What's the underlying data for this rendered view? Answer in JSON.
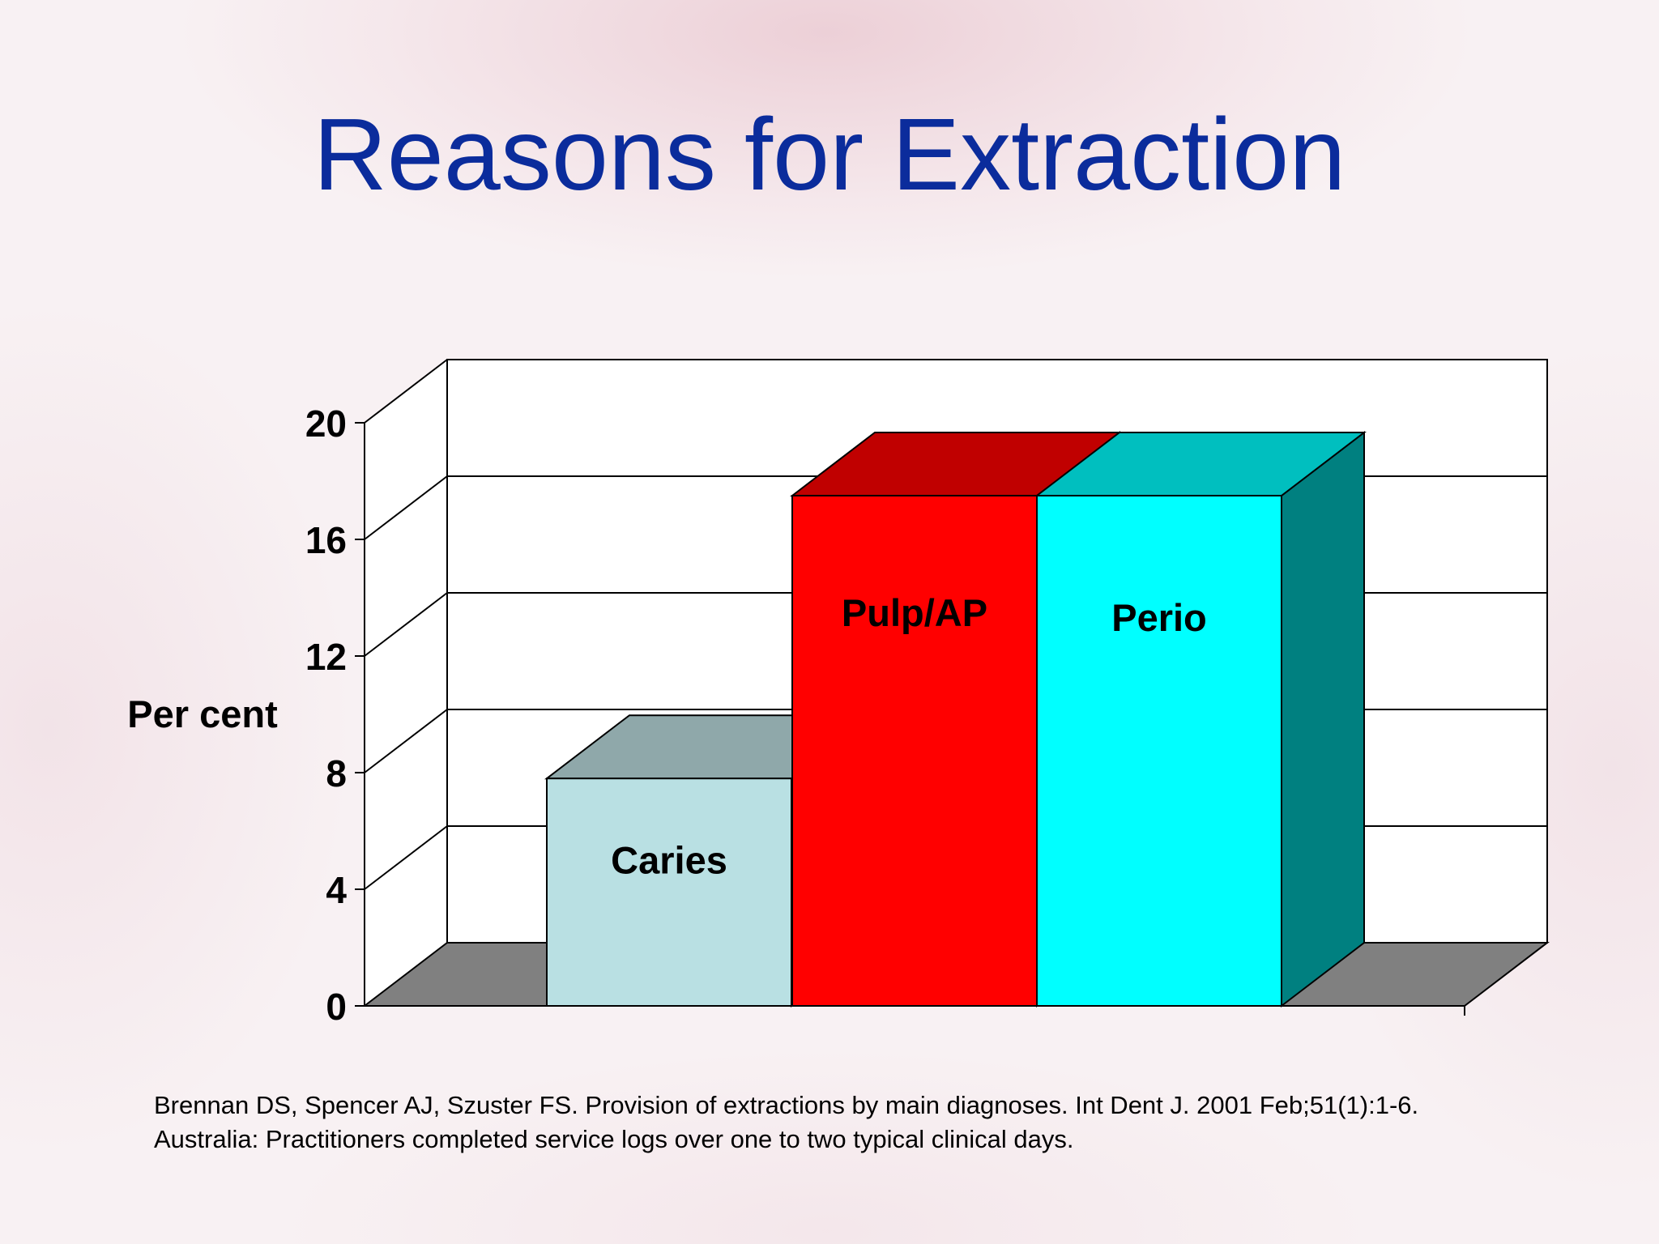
{
  "title": "Reasons for Extraction",
  "chart_data": {
    "type": "bar",
    "categories": [
      "Caries",
      "Pulp/AP",
      "Perio"
    ],
    "values": [
      7.8,
      17.5,
      17.5
    ],
    "ylabel": "Per cent",
    "xlabel": "",
    "ylim": [
      0,
      20
    ],
    "yticks": [
      "0",
      "4",
      "8",
      "12",
      "16",
      "20"
    ],
    "ytick_values": [
      0,
      4,
      8,
      12,
      16,
      20
    ],
    "bar_labels": [
      "Caries",
      "Pulp/AP",
      "Perio"
    ],
    "colors": {
      "caries_front": "#b9e0e3",
      "caries_top": "#8fa8aa",
      "pulp_front": "#ff0000",
      "pulp_top": "#c00000",
      "perio_front": "#00ffff",
      "perio_top": "#00bfbf",
      "perio_side": "#008080",
      "floor": "#808080",
      "wall": "#ffffff"
    },
    "grid": true,
    "three_d": true
  },
  "citation": {
    "line1": "Brennan DS, Spencer AJ, Szuster FS. Provision of extractions by main diagnoses. Int Dent J. 2001 Feb;51(1):1-6.",
    "line2": "Australia: Practitioners completed service logs over one to two typical clinical days."
  }
}
